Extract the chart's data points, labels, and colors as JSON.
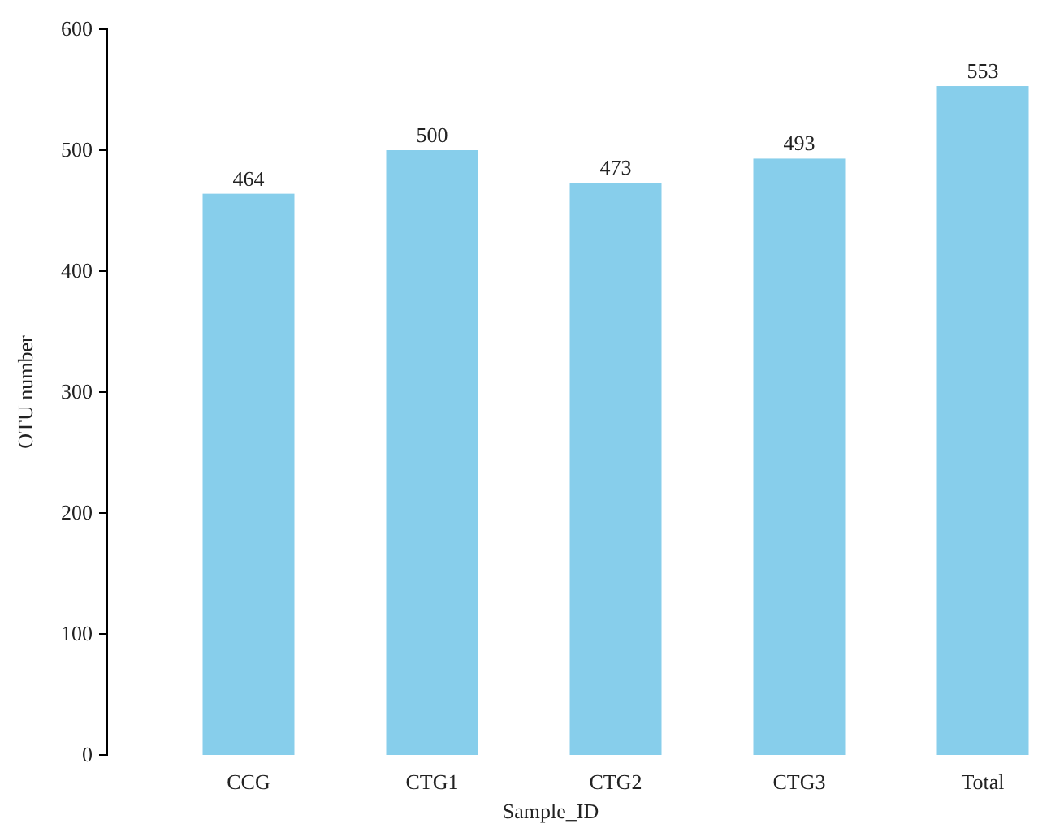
{
  "chart_data": {
    "type": "bar",
    "xlabel": "Sample_ID",
    "ylabel": "OTU number",
    "categories": [
      "CCG",
      "CTG1",
      "CTG2",
      "CTG3",
      "Total"
    ],
    "values": [
      464,
      500,
      473,
      493,
      553
    ],
    "color": "#87ceeb",
    "ylim": [
      0,
      600
    ],
    "yticks": [
      0,
      100,
      200,
      300,
      400,
      500,
      600
    ],
    "data_labels": true,
    "grid": false
  }
}
